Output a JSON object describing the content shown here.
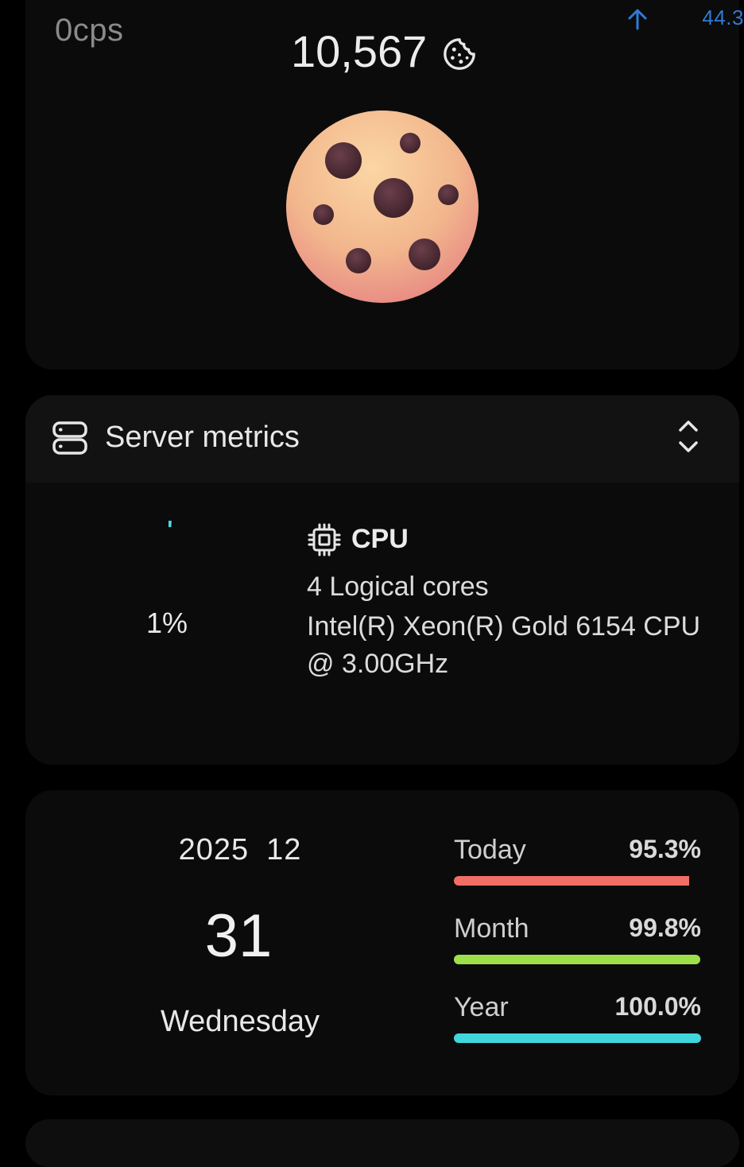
{
  "cookie_card": {
    "cps": "0cps",
    "count": "10,567",
    "upload": {
      "value": "44.3",
      "icon": "arrow-up-icon",
      "color": "#2f7bd6"
    },
    "cookie_icon": "cookie-icon"
  },
  "server_metrics": {
    "title": "Server metrics",
    "header_icon": "server-icon",
    "toggle_icon": "expand-collapse-icon",
    "cpu": {
      "title": "CPU",
      "icon": "cpu-chip-icon",
      "usage_percent": "1%",
      "usage_fraction": 0.01,
      "ring_color": "#4fd8e6",
      "cores": "4 Logical cores",
      "model": "Intel(R) Xeon(R) Gold 6154 CPU @ 3.00GHz"
    }
  },
  "date_card": {
    "year": "2025",
    "month": "12",
    "day": "31",
    "weekday": "Wednesday",
    "progress": [
      {
        "label": "Today",
        "value": "95.3%",
        "fraction": 0.953,
        "color": "#f06e64"
      },
      {
        "label": "Month",
        "value": "99.8%",
        "fraction": 0.998,
        "color": "#9ee04a"
      },
      {
        "label": "Year",
        "value": "100.0%",
        "fraction": 1.0,
        "color": "#3fd6dc"
      }
    ]
  }
}
